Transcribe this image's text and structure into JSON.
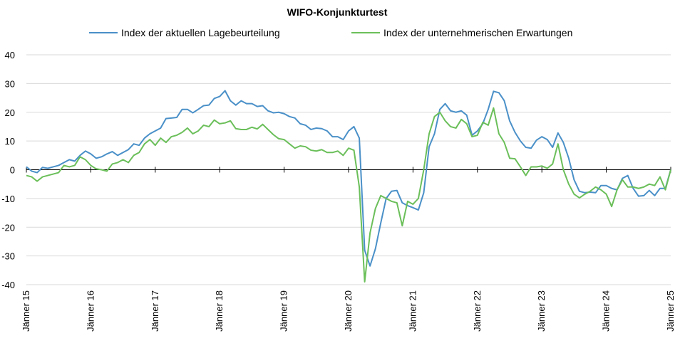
{
  "chart_data": {
    "type": "line",
    "title": "WIFO-Konjunkturtest",
    "xlabel": "",
    "ylabel": "",
    "ylim": [
      -40,
      40
    ],
    "yticks": [
      40,
      30,
      20,
      10,
      0,
      -10,
      -20,
      -30,
      -40
    ],
    "xtick_labels": [
      "Jänner 15",
      "Jänner 16",
      "Jänner 17",
      "Jänner 18",
      "Jänner 19",
      "Jänner 20",
      "Jänner 21",
      "Jänner 22",
      "Jänner 23",
      "Jänner 24",
      "Jänner 25"
    ],
    "x_start": "2015-01",
    "x_end": "2025-01",
    "frequency": "monthly",
    "grid": true,
    "legend_position": "top",
    "series": [
      {
        "name": "Index der aktuellen Lagebeurteilung",
        "color": "#4a90c8",
        "values": [
          1.0,
          -0.5,
          -1.0,
          0.8,
          0.5,
          1.0,
          1.5,
          2.5,
          3.5,
          3.0,
          5.0,
          6.5,
          5.5,
          4.0,
          4.5,
          5.5,
          6.3,
          5.0,
          6.0,
          7.0,
          9.0,
          8.5,
          11.0,
          12.5,
          13.5,
          14.5,
          17.8,
          18.0,
          18.2,
          21.0,
          21.0,
          19.8,
          21.0,
          22.3,
          22.5,
          24.8,
          25.5,
          27.5,
          24.0,
          22.5,
          24.0,
          23.0,
          23.0,
          22.0,
          22.3,
          20.5,
          19.8,
          20.0,
          19.5,
          18.5,
          18.0,
          16.0,
          15.5,
          14.0,
          14.5,
          14.3,
          13.5,
          11.5,
          11.5,
          10.5,
          13.5,
          15.0,
          11.0,
          -28.0,
          -33.5,
          -27.5,
          -18.5,
          -10.0,
          -7.5,
          -7.2,
          -11.5,
          -12.5,
          -13.2,
          -14.0,
          -8.0,
          8.0,
          12.5,
          21.0,
          23.0,
          20.5,
          20.0,
          20.5,
          19.0,
          12.0,
          13.5,
          16.0,
          21.0,
          27.3,
          26.8,
          24.0,
          17.0,
          13.0,
          10.0,
          7.8,
          7.5,
          10.3,
          11.5,
          10.5,
          7.8,
          12.8,
          9.5,
          4.0,
          -3.5,
          -7.5,
          -8.0,
          -7.8,
          -8.0,
          -5.5,
          -5.5,
          -6.5,
          -7.0,
          -3.0,
          -2.0,
          -6.5,
          -9.2,
          -9.0,
          -7.2,
          -9.0,
          -6.5,
          -6.5,
          0.0
        ]
      },
      {
        "name": "Index der unternehmerischen Erwartungen",
        "color": "#6bbf5a",
        "values": [
          -2.0,
          -2.5,
          -4.0,
          -2.5,
          -2.0,
          -1.5,
          -1.0,
          1.5,
          1.0,
          1.5,
          4.5,
          3.5,
          1.5,
          0.3,
          0.0,
          -0.5,
          2.0,
          2.5,
          3.5,
          2.5,
          5.0,
          6.0,
          9.0,
          10.5,
          8.5,
          11.0,
          9.5,
          11.5,
          12.0,
          13.0,
          14.5,
          12.5,
          13.5,
          15.5,
          15.0,
          17.3,
          16.0,
          16.3,
          17.0,
          14.3,
          14.0,
          14.0,
          14.8,
          14.2,
          15.8,
          14.0,
          12.2,
          10.8,
          10.5,
          9.0,
          7.5,
          8.3,
          8.0,
          6.8,
          6.5,
          7.0,
          6.0,
          6.0,
          6.5,
          5.0,
          7.5,
          6.8,
          -6.0,
          -39.0,
          -22.0,
          -13.5,
          -9.0,
          -10.0,
          -11.0,
          -11.5,
          -19.5,
          -11.0,
          -12.0,
          -10.0,
          0.0,
          12.5,
          18.5,
          20.0,
          17.0,
          15.0,
          14.5,
          17.5,
          16.0,
          11.5,
          12.0,
          16.5,
          15.5,
          21.5,
          12.5,
          9.5,
          4.0,
          3.8,
          1.0,
          -2.0,
          1.0,
          1.0,
          1.3,
          0.5,
          2.0,
          9.0,
          0.0,
          -5.0,
          -8.5,
          -9.8,
          -8.5,
          -7.5,
          -6.0,
          -7.0,
          -8.5,
          -12.8,
          -7.0,
          -3.5,
          -6.0,
          -6.0,
          -6.5,
          -6.0,
          -5.0,
          -5.5,
          -2.5,
          -7.0,
          0.0
        ]
      }
    ]
  }
}
